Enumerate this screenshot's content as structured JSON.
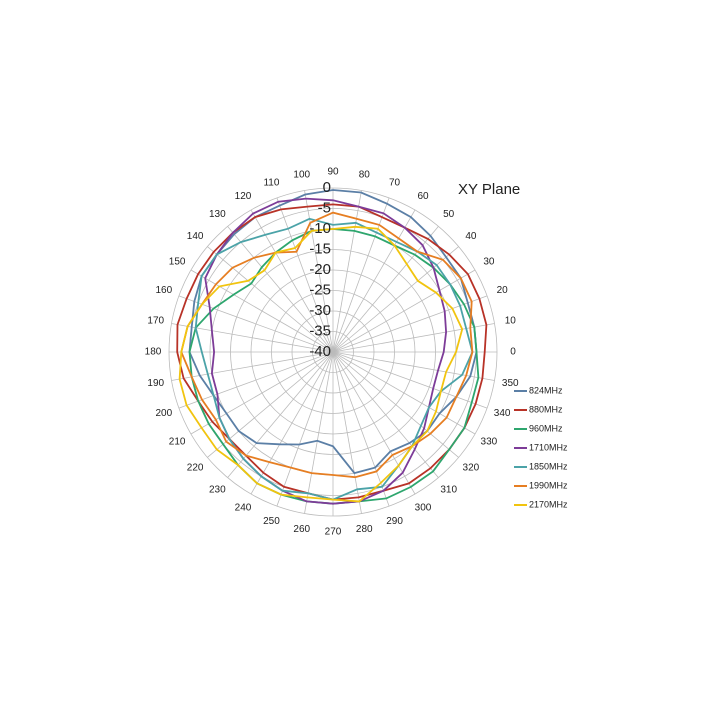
{
  "chart_data": {
    "type": "polar",
    "title": "XY  Plane",
    "theta": [
      0,
      10,
      20,
      30,
      40,
      50,
      60,
      70,
      80,
      90,
      100,
      110,
      120,
      130,
      140,
      150,
      160,
      170,
      180,
      190,
      200,
      210,
      220,
      230,
      240,
      250,
      260,
      270,
      280,
      290,
      300,
      310,
      320,
      330,
      340,
      350
    ],
    "rlim": [
      -40,
      0
    ],
    "rticks": [
      0,
      -5,
      -10,
      -15,
      -20,
      -25,
      -30,
      -35,
      -40
    ],
    "grid": true,
    "legend": "right",
    "series": [
      {
        "name": "824MHz",
        "color": "#5b7fa6",
        "values": [
          -5,
          -5,
          -5,
          -4,
          -4,
          -3,
          -2,
          -1.5,
          -0.5,
          -0.5,
          -1,
          -2,
          -2,
          -2.5,
          -3,
          -3,
          -4,
          -5,
          -5,
          -7,
          -9,
          -10,
          -10,
          -11,
          -14,
          -16,
          -18,
          -17,
          -10,
          -10,
          -12,
          -11,
          -10,
          -10,
          -8,
          -6
        ]
      },
      {
        "name": "880MHz",
        "color": "#b83227",
        "values": [
          -3,
          -2,
          -2,
          -2,
          -3,
          -4,
          -5,
          -5,
          -4,
          -4,
          -4,
          -3,
          -2,
          -2,
          -2,
          -2,
          -2,
          -1.5,
          -2,
          -3,
          -5,
          -6,
          -7,
          -7,
          -6,
          -5,
          -5,
          -4,
          -4,
          -4,
          -3,
          -3,
          -3,
          -3,
          -3,
          -3
        ]
      },
      {
        "name": "960MHz",
        "color": "#2ea66e",
        "values": [
          -5,
          -5,
          -6,
          -7,
          -8,
          -9,
          -10,
          -10,
          -10,
          -10,
          -10,
          -11,
          -12,
          -13,
          -14,
          -12,
          -9,
          -6,
          -5,
          -5,
          -5,
          -5,
          -5,
          -4,
          -3,
          -3,
          -3,
          -3,
          -3,
          -2,
          -2,
          -2,
          -3,
          -3,
          -4,
          -4
        ]
      },
      {
        "name": "1710MHz",
        "color": "#7d3c98",
        "values": [
          -13,
          -12,
          -11,
          -10,
          -8,
          -6,
          -5,
          -4,
          -4,
          -3,
          -2,
          -1,
          -1,
          -2,
          -3,
          -4,
          -8,
          -10,
          -11,
          -10,
          -10,
          -8,
          -7,
          -6,
          -5,
          -4,
          -3,
          -3,
          -3,
          -4,
          -6,
          -9,
          -11,
          -13,
          -14,
          -14
        ]
      },
      {
        "name": "1850MHz",
        "color": "#4ba3a8",
        "values": [
          -6,
          -7,
          -7,
          -7,
          -7,
          -8,
          -9,
          -9,
          -8,
          -9,
          -7,
          -8,
          -7,
          -5,
          -3,
          -3,
          -5,
          -6,
          -8,
          -9,
          -9,
          -8,
          -7,
          -6,
          -5,
          -4,
          -5,
          -4,
          -6,
          -5,
          -8,
          -10,
          -12,
          -13,
          -12,
          -8
        ]
      },
      {
        "name": "1990MHz",
        "color": "#e67e22",
        "values": [
          -6,
          -6,
          -4,
          -4,
          -5,
          -8,
          -8,
          -7,
          -7,
          -6,
          -8,
          -14,
          -12,
          -10,
          -8,
          -7,
          -6,
          -4,
          -3,
          -5,
          -6,
          -7,
          -6,
          -7,
          -9,
          -10,
          -10,
          -10,
          -9,
          -9,
          -11,
          -10,
          -9,
          -8,
          -8,
          -7
        ]
      },
      {
        "name": "2170MHz",
        "color": "#f1c40f",
        "values": [
          -10,
          -8,
          -9,
          -11,
          -13,
          -12,
          -10,
          -8,
          -9,
          -10,
          -10,
          -13,
          -12,
          -14,
          -13,
          -8,
          -6,
          -4,
          -3,
          -2,
          -2,
          -3,
          -3,
          -4,
          -3,
          -3,
          -4,
          -4,
          -3,
          -6,
          -8,
          -10,
          -10,
          -11,
          -12,
          -12
        ]
      }
    ]
  }
}
